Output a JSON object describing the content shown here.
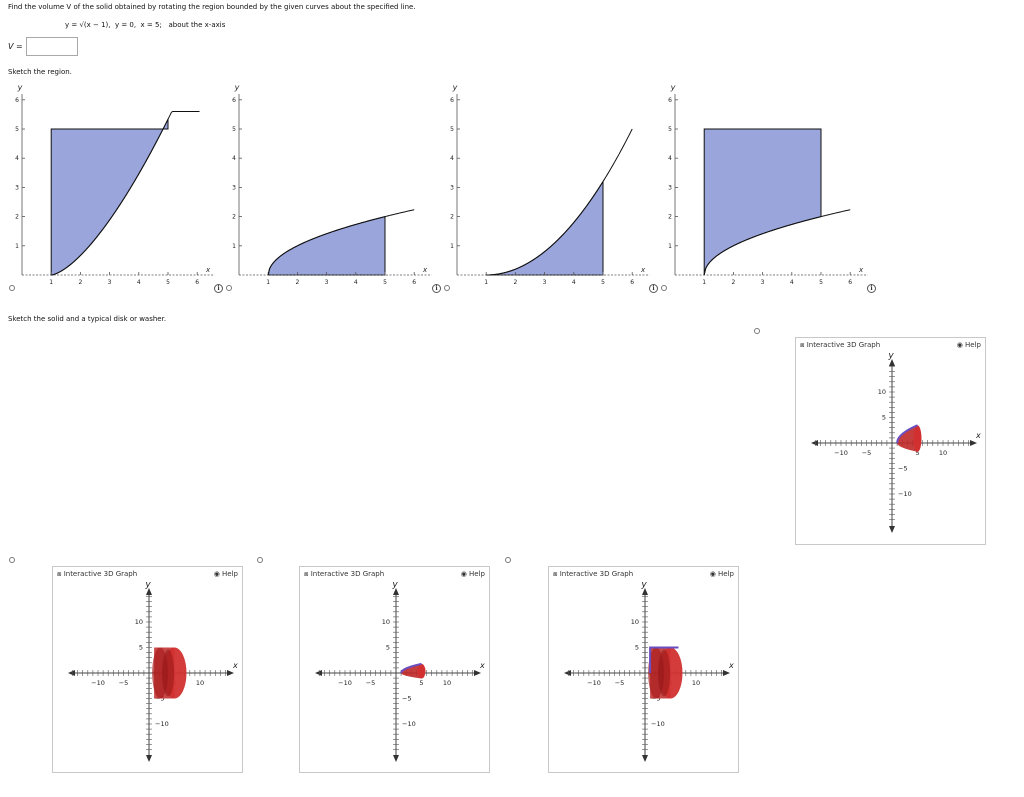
{
  "problem": {
    "statement": "Find the volume V of the solid obtained by rotating the region bounded by the given curves about the specified line.",
    "equations": "y = √(x − 1),  y = 0,  x = 5;",
    "about": "about the x-axis"
  },
  "answer": {
    "label": "V",
    "equals": " =",
    "value": ""
  },
  "sketch_region_prompt": "Sketch the region.",
  "sketch_solid_prompt": "Sketch the solid and a typical disk or washer.",
  "region_axes": {
    "x_label": "x",
    "y_label": "y",
    "x_ticks": [
      "1",
      "2",
      "3",
      "4",
      "5",
      "6"
    ],
    "y_ticks": [
      "1",
      "2",
      "3",
      "4",
      "5",
      "6"
    ],
    "fill_color": "#9aa5dc",
    "curve_color": "#111111"
  },
  "region_options": [
    {
      "name": "option-a",
      "curve": "y = (x − 1)^1.5 / 1.5, x ∈ [1, 6.5]",
      "region": "between curve and y = 5 for x from 1 to 5"
    },
    {
      "name": "option-b",
      "curve": "y = √(x − 1), x ∈ [1, 6]",
      "region": "under curve, x from 1 to 5"
    },
    {
      "name": "option-c",
      "curve": "y = (x − 1)^2 / 5, x ∈ [1, 6]",
      "region": "under curve, x from 1 to 5"
    },
    {
      "name": "option-d",
      "curve": "y = √(x − 1), x ∈ [1, 6]",
      "region": "between curve and y = 5 for x from 1 to 5"
    }
  ],
  "graph3d": {
    "title": "Interactive 3D Graph",
    "help": "Help",
    "x_label": "x",
    "y_label": "y",
    "x_tick_labels": [
      "−10",
      "−5",
      "5",
      "10"
    ],
    "y_tick_labels": [
      "10",
      "5",
      "−5",
      "−10"
    ],
    "solid_color": "#c02828",
    "edge_color": "#6a4ec0"
  }
}
